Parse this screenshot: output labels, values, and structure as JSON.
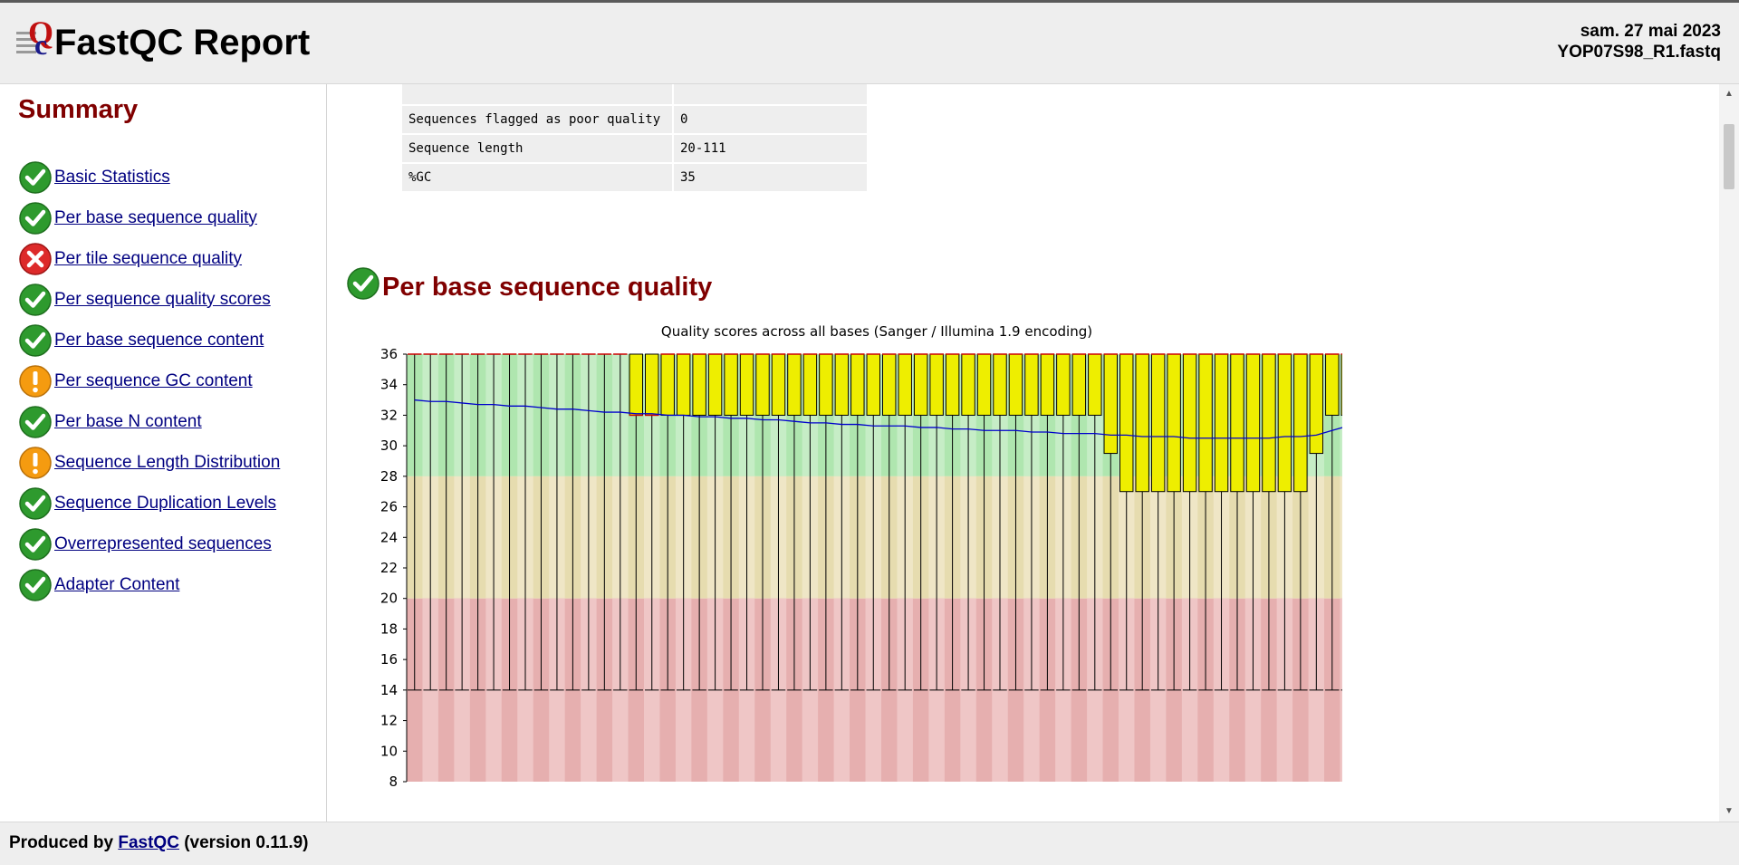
{
  "header": {
    "title": "FastQC Report",
    "date": "sam. 27 mai 2023",
    "filename": "YOP07S98_R1.fastq"
  },
  "sidebar": {
    "title": "Summary",
    "items": [
      {
        "label": "Basic Statistics",
        "status": "pass"
      },
      {
        "label": "Per base sequence quality",
        "status": "pass"
      },
      {
        "label": "Per tile sequence quality",
        "status": "fail"
      },
      {
        "label": "Per sequence quality scores",
        "status": "pass"
      },
      {
        "label": "Per base sequence content",
        "status": "pass"
      },
      {
        "label": "Per sequence GC content",
        "status": "warn"
      },
      {
        "label": "Per base N content",
        "status": "pass"
      },
      {
        "label": "Sequence Length Distribution",
        "status": "warn"
      },
      {
        "label": "Sequence Duplication Levels",
        "status": "pass"
      },
      {
        "label": "Overrepresented sequences",
        "status": "pass"
      },
      {
        "label": "Adapter Content",
        "status": "pass"
      }
    ]
  },
  "basic_stats": {
    "rows": [
      {
        "measure": "Sequences flagged as poor quality",
        "value": "0"
      },
      {
        "measure": "Sequence length",
        "value": "20-111"
      },
      {
        "measure": "%GC",
        "value": "35"
      }
    ]
  },
  "module": {
    "title": "Per base sequence quality",
    "status": "pass"
  },
  "footer": {
    "prefix": "Produced by",
    "link": "FastQC",
    "version": "(version 0.11.9)"
  },
  "colors": {
    "good": "#afe6af",
    "reasonable": "#e6dcaf",
    "poor": "#e6afaf",
    "box": "#eeee00",
    "mean": "#0000cc",
    "median": "#cc0000"
  },
  "chart_data": {
    "type": "box",
    "title": "Quality scores across all bases (Sanger / Illumina 1.9 encoding)",
    "xlabel": "",
    "ylabel": "",
    "ylim": [
      8,
      36
    ],
    "yticks": [
      8,
      10,
      12,
      14,
      16,
      18,
      20,
      22,
      24,
      26,
      28,
      30,
      32,
      34,
      36
    ],
    "zones": [
      {
        "name": "good",
        "from": 28,
        "to": 36
      },
      {
        "name": "reasonable",
        "from": 20,
        "to": 28
      },
      {
        "name": "poor",
        "from": 8,
        "to": 20
      }
    ],
    "positions": 60,
    "whisker_low": 14,
    "whisker_high": 36,
    "box_q1": [
      36,
      36,
      36,
      36,
      36,
      36,
      36,
      36,
      36,
      36,
      36,
      36,
      36,
      36,
      32,
      32,
      32,
      32,
      32,
      32,
      32,
      32,
      32,
      32,
      32,
      32,
      32,
      32,
      32,
      32,
      32,
      32,
      32,
      32,
      32,
      32,
      32,
      32,
      32,
      32,
      32,
      32,
      32,
      32,
      29.5,
      27,
      27,
      27,
      27,
      27,
      27,
      27,
      27,
      27,
      27,
      27,
      27,
      29.5,
      32,
      32
    ],
    "box_q3": [
      36,
      36,
      36,
      36,
      36,
      36,
      36,
      36,
      36,
      36,
      36,
      36,
      36,
      36,
      36,
      36,
      36,
      36,
      36,
      36,
      36,
      36,
      36,
      36,
      36,
      36,
      36,
      36,
      36,
      36,
      36,
      36,
      36,
      36,
      36,
      36,
      36,
      36,
      36,
      36,
      36,
      36,
      36,
      36,
      36,
      36,
      36,
      36,
      36,
      36,
      36,
      36,
      36,
      36,
      36,
      36,
      36,
      36,
      36,
      36
    ],
    "median": [
      36,
      36,
      36,
      36,
      36,
      36,
      36,
      36,
      36,
      36,
      36,
      36,
      36,
      36,
      32,
      32,
      36,
      36,
      36,
      36,
      36,
      36,
      36,
      36,
      36,
      36,
      36,
      36,
      36,
      36,
      36,
      36,
      36,
      36,
      36,
      36,
      36,
      36,
      36,
      36,
      36,
      36,
      36,
      36,
      36,
      36,
      36,
      36,
      36,
      36,
      36,
      36,
      36,
      36,
      36,
      36,
      36,
      36,
      36,
      36
    ],
    "mean": [
      33.0,
      32.9,
      32.9,
      32.8,
      32.7,
      32.7,
      32.6,
      32.6,
      32.5,
      32.4,
      32.4,
      32.3,
      32.2,
      32.2,
      32.1,
      32.1,
      32.0,
      32.0,
      31.9,
      31.9,
      31.8,
      31.8,
      31.7,
      31.7,
      31.6,
      31.5,
      31.5,
      31.4,
      31.4,
      31.3,
      31.3,
      31.3,
      31.2,
      31.2,
      31.1,
      31.1,
      31.0,
      31.0,
      31.0,
      30.9,
      30.9,
      30.8,
      30.8,
      30.8,
      30.7,
      30.7,
      30.6,
      30.6,
      30.6,
      30.5,
      30.5,
      30.5,
      30.5,
      30.5,
      30.5,
      30.6,
      30.6,
      30.7,
      31.0,
      31.3
    ]
  }
}
